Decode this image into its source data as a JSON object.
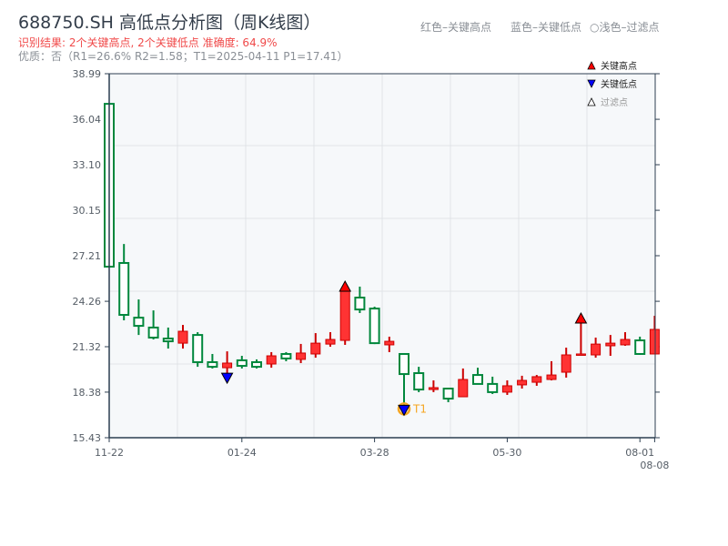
{
  "header": {
    "title": "688750.SH 高低点分析图（周K线图）",
    "result": "识别结果: 2个关键高点, 2个关键低点  准确度: 64.9%",
    "info": "优质：否（R1=26.6%  R2=1.58；T1=2025-04-11 P1=17.41）"
  },
  "top_legend": [
    "红色–关键高点",
    "蓝色–关键低点",
    "○浅色–过滤点"
  ],
  "colors": {
    "up": "#ff3333",
    "up_edge": "#cc0000",
    "down": "#00873c",
    "key_high": "#ff0000",
    "key_low": "#0000ff",
    "t1_ring": "#f5a623",
    "plot_bg": "#f6f8fa",
    "axis": "#2c3e50"
  },
  "chart_data": {
    "type": "candlestick",
    "title": "688750.SH 高低点分析图（周K线图）",
    "ylim": [
      15.43,
      38.99
    ],
    "yticks": [
      "15.43",
      "18.38",
      "21.32",
      "24.26",
      "27.21",
      "30.15",
      "33.10",
      "36.04",
      "38.99"
    ],
    "xticks": [
      {
        "label": "11-22",
        "index": 0
      },
      {
        "label": "01-24",
        "index": 9
      },
      {
        "label": "03-28",
        "index": 18
      },
      {
        "label": "05-30",
        "index": 27
      },
      {
        "label": "08-01",
        "index": 36
      },
      {
        "label": "08-08",
        "index": 37
      }
    ],
    "grid": true,
    "legend": {
      "position": "top-right",
      "entries": [
        "关键高点",
        "关键低点",
        "过滤点"
      ]
    },
    "candles": [
      {
        "o": 37.04,
        "h": 37.04,
        "l": 26.5,
        "c": 26.5
      },
      {
        "o": 26.74,
        "h": 27.97,
        "l": 23.03,
        "c": 23.38
      },
      {
        "o": 23.2,
        "h": 24.38,
        "l": 22.08,
        "c": 22.67
      },
      {
        "o": 22.56,
        "h": 23.67,
        "l": 21.79,
        "c": 21.91
      },
      {
        "o": 21.85,
        "h": 22.56,
        "l": 21.2,
        "c": 21.67
      },
      {
        "o": 21.55,
        "h": 22.73,
        "l": 21.2,
        "c": 22.32
      },
      {
        "o": 22.08,
        "h": 22.26,
        "l": 20.02,
        "c": 20.32
      },
      {
        "o": 20.32,
        "h": 20.85,
        "l": 19.91,
        "c": 20.02
      },
      {
        "o": 19.96,
        "h": 21.02,
        "l": 19.49,
        "c": 20.26
      },
      {
        "o": 20.44,
        "h": 20.73,
        "l": 19.91,
        "c": 20.08
      },
      {
        "o": 20.32,
        "h": 20.5,
        "l": 19.91,
        "c": 20.02
      },
      {
        "o": 20.2,
        "h": 20.97,
        "l": 19.96,
        "c": 20.73
      },
      {
        "o": 20.85,
        "h": 20.97,
        "l": 20.38,
        "c": 20.56
      },
      {
        "o": 20.5,
        "h": 21.5,
        "l": 20.26,
        "c": 20.91
      },
      {
        "o": 20.85,
        "h": 22.2,
        "l": 20.61,
        "c": 21.55
      },
      {
        "o": 21.49,
        "h": 22.26,
        "l": 21.32,
        "c": 21.79
      },
      {
        "o": 21.73,
        "h": 24.91,
        "l": 21.44,
        "c": 24.91
      },
      {
        "o": 24.5,
        "h": 25.21,
        "l": 23.5,
        "c": 23.73
      },
      {
        "o": 23.79,
        "h": 23.91,
        "l": 21.49,
        "c": 21.55
      },
      {
        "o": 21.44,
        "h": 21.97,
        "l": 20.97,
        "c": 21.67
      },
      {
        "o": 20.85,
        "h": 20.85,
        "l": 17.41,
        "c": 19.55
      },
      {
        "o": 19.61,
        "h": 20.02,
        "l": 18.38,
        "c": 18.55
      },
      {
        "o": 18.55,
        "h": 19.14,
        "l": 18.38,
        "c": 18.67
      },
      {
        "o": 18.61,
        "h": 18.61,
        "l": 17.73,
        "c": 17.96
      },
      {
        "o": 18.08,
        "h": 19.91,
        "l": 18.08,
        "c": 19.2
      },
      {
        "o": 19.49,
        "h": 19.96,
        "l": 18.91,
        "c": 18.91
      },
      {
        "o": 18.91,
        "h": 19.38,
        "l": 18.26,
        "c": 18.38
      },
      {
        "o": 18.38,
        "h": 19.14,
        "l": 18.2,
        "c": 18.79
      },
      {
        "o": 18.85,
        "h": 19.44,
        "l": 18.61,
        "c": 19.14
      },
      {
        "o": 19.02,
        "h": 19.49,
        "l": 18.79,
        "c": 19.38
      },
      {
        "o": 19.2,
        "h": 20.38,
        "l": 19.14,
        "c": 19.49
      },
      {
        "o": 19.67,
        "h": 21.26,
        "l": 19.32,
        "c": 20.79
      },
      {
        "o": 20.79,
        "h": 22.85,
        "l": 20.79,
        "c": 20.85
      },
      {
        "o": 20.79,
        "h": 21.91,
        "l": 20.61,
        "c": 21.49
      },
      {
        "o": 21.38,
        "h": 22.08,
        "l": 20.73,
        "c": 21.55
      },
      {
        "o": 21.44,
        "h": 22.26,
        "l": 21.38,
        "c": 21.79
      },
      {
        "o": 21.73,
        "h": 21.97,
        "l": 20.79,
        "c": 20.85
      },
      {
        "o": 20.85,
        "h": 23.32,
        "l": 20.85,
        "c": 22.44
      }
    ],
    "key_highs": [
      16,
      32
    ],
    "key_lows": [
      8,
      20
    ],
    "annotations": [
      {
        "label": "T1",
        "index": 20,
        "value": 17.41
      }
    ]
  }
}
